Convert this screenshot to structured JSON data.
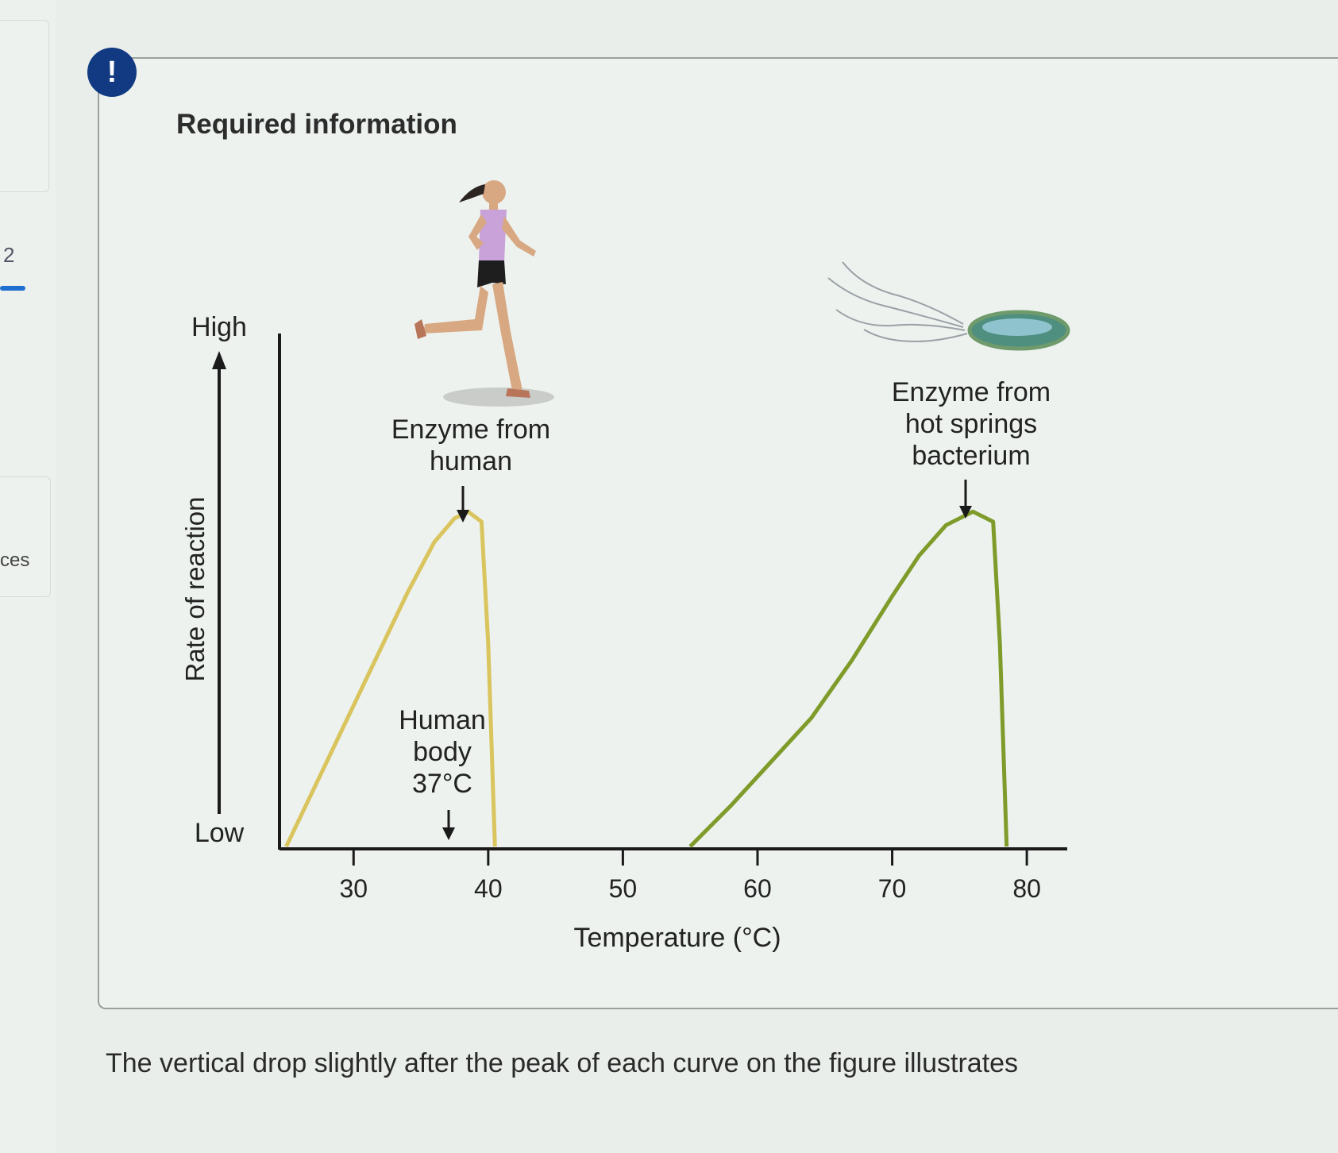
{
  "sidebar": {
    "number": "2",
    "partial_text": "ces"
  },
  "panel": {
    "alert_symbol": "!",
    "title": "Required information"
  },
  "question": {
    "text": "The vertical drop slightly after the peak of each curve on the figure illustrates"
  },
  "colors": {
    "alert": "#123a82",
    "human_curve": "#d9c45e",
    "bacterium_curve": "#7f9b2a",
    "axis": "#1a1a1a",
    "accent_bar": "#1f6fd0"
  },
  "chart_data": {
    "type": "line",
    "xlabel": "Temperature (°C)",
    "ylabel": "Rate of reaction",
    "y_high_label": "High",
    "y_low_label": "Low",
    "xlim": [
      24.5,
      83
    ],
    "ylim": [
      0,
      1
    ],
    "x_ticks": [
      "30",
      "40",
      "50",
      "60",
      "70",
      "80"
    ],
    "series": [
      {
        "name": "Enzyme from human",
        "x": [
          25,
          28,
          31,
          34,
          36,
          37.5,
          38.5,
          39.5,
          40,
          40.5
        ],
        "y": [
          0,
          0.25,
          0.5,
          0.75,
          0.9,
          0.97,
          0.99,
          0.96,
          0.6,
          0
        ]
      },
      {
        "name": "Enzyme from hot springs bacterium",
        "x": [
          55,
          58,
          61,
          64,
          67,
          70,
          72,
          74,
          76,
          77.5,
          78,
          78.5
        ],
        "y": [
          0,
          0.12,
          0.25,
          0.38,
          0.55,
          0.74,
          0.86,
          0.95,
          0.99,
          0.96,
          0.6,
          0
        ]
      }
    ],
    "annotations": {
      "human_label": [
        "Enzyme from",
        "human"
      ],
      "human_peak_x": 38.5,
      "bacterium_label": [
        "Enzyme from",
        "hot springs",
        "bacterium"
      ],
      "bacterium_peak_x": 76,
      "body_label": [
        "Human",
        "body",
        "37°C"
      ],
      "body_x": 37
    },
    "illustrations": [
      "runner-illustration",
      "bacterium-illustration"
    ]
  }
}
